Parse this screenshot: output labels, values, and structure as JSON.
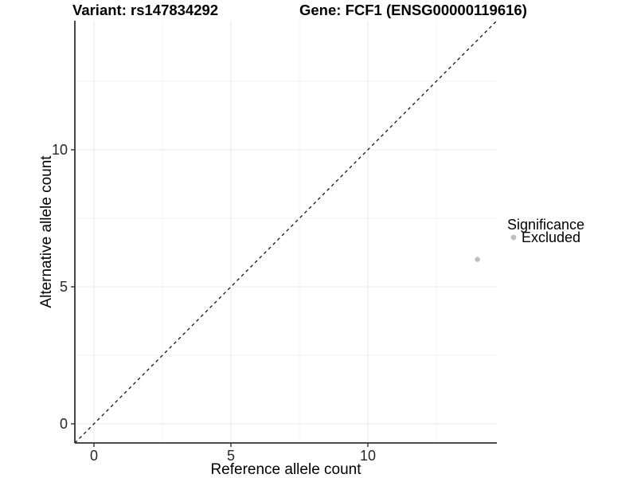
{
  "header": {
    "variant_title": "Variant: rs147834292",
    "gene_title": "Gene: FCF1 (ENSG00000119616)"
  },
  "chart_data": {
    "type": "scatter",
    "title_left": "Variant: rs147834292",
    "title_right": "Gene: FCF1 (ENSG00000119616)",
    "xlabel": "Reference allele count",
    "ylabel": "Alternative allele count",
    "x_ticks": [
      "0",
      "5",
      "10"
    ],
    "y_ticks": [
      "0",
      "5",
      "10"
    ],
    "xlim": [
      -0.7,
      14.7
    ],
    "ylim": [
      -0.7,
      14.7
    ],
    "grid": {
      "major": [
        0,
        5,
        10
      ],
      "minor": [
        2.5,
        7.5,
        12.5
      ],
      "visible": true
    },
    "points": [
      {
        "x": 14,
        "y": 6,
        "series": "Excluded",
        "color": "#bebebe",
        "radius_px": 3.2
      }
    ],
    "identity_line": {
      "type": "abline",
      "slope": 1,
      "intercept": 0,
      "style": "dashed",
      "color": "#111111"
    },
    "legend": {
      "title": "Significance",
      "position": "right",
      "entries": [
        {
          "label": "Excluded",
          "color": "#bebebe"
        }
      ]
    },
    "colors": {
      "background": "#ffffff",
      "grid_major": "#e8e8e8",
      "grid_minor": "#f3f3f3",
      "axis": "#333333",
      "point": "#bebebe"
    }
  }
}
